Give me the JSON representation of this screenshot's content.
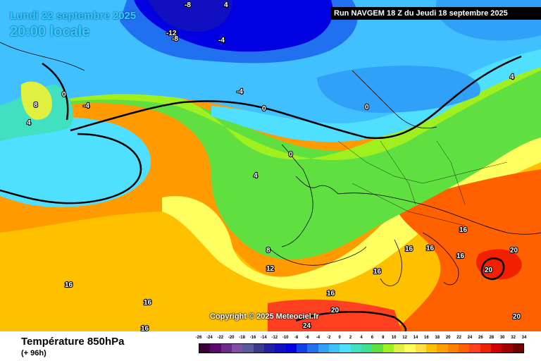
{
  "header": {
    "date": "Lundi 22 septembre 2025",
    "time": "20:00 locale",
    "run": "Run NAVGEM 18 Z du Jeudi 18 septembre 2025"
  },
  "copyright": "Copyright © 2025 Meteociel.fr",
  "footer": {
    "field": "Température 850hPa",
    "lead": "(+ 96h)"
  },
  "legend": {
    "labels": [
      "-26",
      "-24",
      "-22",
      "-20",
      "-18",
      "-16",
      "-14",
      "-12",
      "-10",
      "-8",
      "-6",
      "-4",
      "-2",
      "0",
      "2",
      "4",
      "6",
      "8",
      "10",
      "12",
      "14",
      "16",
      "18",
      "20",
      "22",
      "24",
      "26",
      "28",
      "30",
      "32",
      "34"
    ],
    "colors": [
      "#3a0038",
      "#5a0a6a",
      "#6b2a8c",
      "#8050a8",
      "#5a5a9a",
      "#3a3a8a",
      "#2020a0",
      "#1010c0",
      "#0000e0",
      "#1040e6",
      "#2070f0",
      "#30a0f8",
      "#40c0ff",
      "#50e0ff",
      "#40e0c0",
      "#40e090",
      "#60e040",
      "#a0f020",
      "#e0f040",
      "#ffff60",
      "#ffe040",
      "#ffc000",
      "#ffa000",
      "#ff8000",
      "#ff6000",
      "#ff4020",
      "#f02000",
      "#d00000",
      "#a00000",
      "#700000"
    ]
  },
  "map_labels": [
    "-8",
    "-12",
    "-8",
    "-4",
    "0",
    "8",
    "4",
    "-4",
    "-4",
    "0",
    "0",
    "4",
    "0",
    "4",
    "8",
    "12",
    "16",
    "16",
    "16",
    "20",
    "24",
    "16",
    "16",
    "16",
    "16",
    "16",
    "20",
    "20",
    "16",
    "20",
    "4"
  ],
  "colors": {
    "cold": "#1010c0",
    "mild": "#a0f020",
    "warm": "#ff8000",
    "hot": "#d00000"
  }
}
